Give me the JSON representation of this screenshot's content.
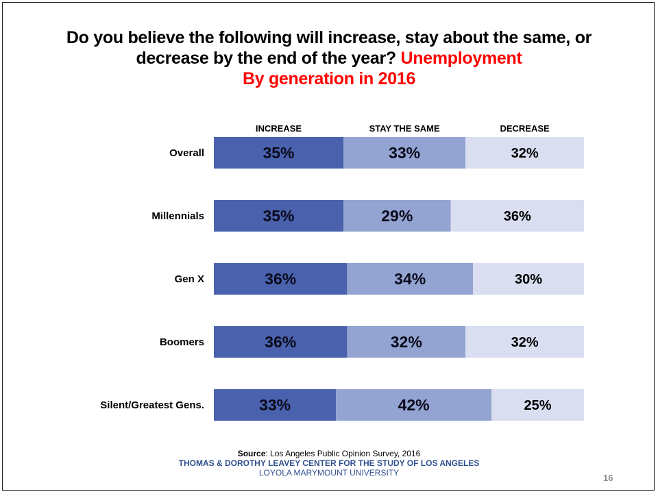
{
  "title": {
    "line1": "Do you believe the following will increase, stay about the same, or",
    "line2_black": "decrease  by the end of the year?",
    "line2_red": "Unemployment",
    "line3_red": "By generation in 2016"
  },
  "column_headers": [
    "INCREASE",
    "STAY THE SAME",
    "DECREASE"
  ],
  "colors": {
    "increase": "#4a62ae",
    "stay": "#93a3d2",
    "decrease": "#d9def0",
    "accent_red": "#ff0000",
    "footer_blue": "#2f4f8f"
  },
  "chart_data": {
    "type": "bar",
    "orientation": "horizontal-stacked-100",
    "categories": [
      "Overall",
      "Millennials",
      "Gen X",
      "Boomers",
      "Silent/Greatest Gens."
    ],
    "series": [
      {
        "name": "INCREASE",
        "values": [
          35,
          35,
          36,
          36,
          33
        ],
        "labels": [
          "35%",
          "35%",
          "36%",
          "36%",
          "33%"
        ]
      },
      {
        "name": "STAY THE SAME",
        "values": [
          33,
          29,
          34,
          32,
          42
        ],
        "labels": [
          "33%",
          "29%",
          "34%",
          "32%",
          "42%"
        ]
      },
      {
        "name": "DECREASE",
        "values": [
          32,
          36,
          30,
          32,
          25
        ],
        "labels": [
          "32%",
          "36%",
          "30%",
          "32%",
          "25%"
        ]
      }
    ],
    "xlim": [
      0,
      100
    ],
    "legend": "top"
  },
  "footer": {
    "source_label": "Source",
    "source_text": ": Los Angeles Public Opinion Survey, 2016",
    "center_name": "THOMAS & DOROTHY LEAVEY CENTER FOR THE STUDY OF LOS ANGELES",
    "university": "LOYOLA MARYMOUNT UNIVERSITY",
    "page_number": "16"
  }
}
